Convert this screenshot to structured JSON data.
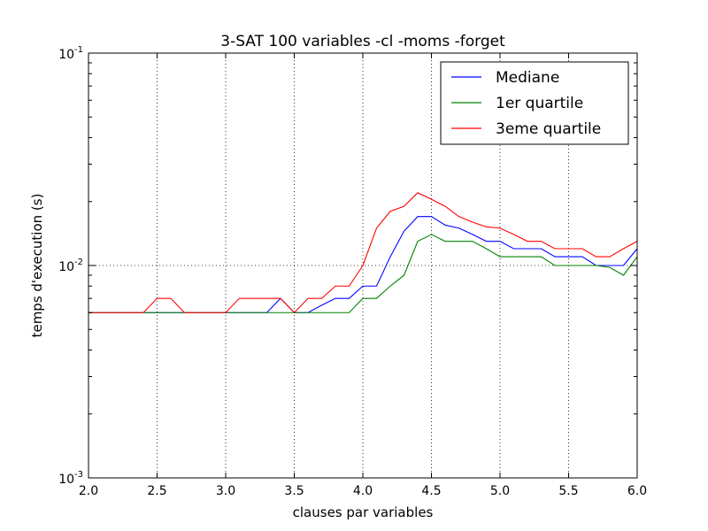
{
  "chart_data": {
    "type": "line",
    "title": "3-SAT 100 variables -cl -moms -forget",
    "xlabel": "clauses par variables",
    "ylabel": "temps d'execution (s)",
    "xlim": [
      2.0,
      6.0
    ],
    "ylim": [
      0.001,
      0.1
    ],
    "yscale": "log",
    "grid": true,
    "legend_position": "top-right",
    "xticks": [
      2.0,
      2.5,
      3.0,
      3.5,
      4.0,
      4.5,
      5.0,
      5.5,
      6.0
    ],
    "xtick_labels": [
      "2.0",
      "2.5",
      "3.0",
      "3.5",
      "4.0",
      "4.5",
      "5.0",
      "5.5",
      "6.0"
    ],
    "yticks": [
      0.001,
      0.01,
      0.1
    ],
    "ytick_labels": [
      {
        "base": "10",
        "exp": "-3"
      },
      {
        "base": "10",
        "exp": "-2"
      },
      {
        "base": "10",
        "exp": "-1"
      }
    ],
    "x": [
      2.0,
      2.1,
      2.2,
      2.3,
      2.4,
      2.5,
      2.6,
      2.7,
      2.8,
      2.9,
      3.0,
      3.1,
      3.2,
      3.3,
      3.4,
      3.5,
      3.6,
      3.7,
      3.8,
      3.9,
      4.0,
      4.1,
      4.2,
      4.3,
      4.4,
      4.5,
      4.6,
      4.7,
      4.8,
      4.9,
      5.0,
      5.1,
      5.2,
      5.3,
      5.4,
      5.5,
      5.6,
      5.7,
      5.8,
      5.9,
      6.0
    ],
    "series": [
      {
        "name": "Mediane",
        "color": "#0000ff",
        "values": [
          0.006,
          0.006,
          0.006,
          0.006,
          0.006,
          0.006,
          0.006,
          0.006,
          0.006,
          0.006,
          0.006,
          0.006,
          0.006,
          0.006,
          0.007,
          0.006,
          0.006,
          0.0065,
          0.007,
          0.007,
          0.008,
          0.008,
          0.011,
          0.0145,
          0.017,
          0.017,
          0.0155,
          0.015,
          0.014,
          0.013,
          0.013,
          0.012,
          0.012,
          0.012,
          0.011,
          0.011,
          0.011,
          0.01,
          0.01,
          0.01,
          0.012
        ]
      },
      {
        "name": "1er quartile",
        "color": "#008000",
        "values": [
          0.006,
          0.006,
          0.006,
          0.006,
          0.006,
          0.006,
          0.006,
          0.006,
          0.006,
          0.006,
          0.006,
          0.006,
          0.006,
          0.006,
          0.006,
          0.006,
          0.006,
          0.006,
          0.006,
          0.006,
          0.007,
          0.007,
          0.008,
          0.009,
          0.013,
          0.014,
          0.013,
          0.013,
          0.013,
          0.012,
          0.011,
          0.011,
          0.011,
          0.011,
          0.01,
          0.01,
          0.01,
          0.01,
          0.0098,
          0.009,
          0.011
        ]
      },
      {
        "name": "3eme quartile",
        "color": "#ff0000",
        "values": [
          0.006,
          0.006,
          0.006,
          0.006,
          0.006,
          0.007,
          0.007,
          0.006,
          0.006,
          0.006,
          0.006,
          0.007,
          0.007,
          0.007,
          0.007,
          0.006,
          0.007,
          0.007,
          0.008,
          0.008,
          0.01,
          0.015,
          0.018,
          0.019,
          0.022,
          0.0205,
          0.019,
          0.017,
          0.016,
          0.0152,
          0.015,
          0.014,
          0.013,
          0.013,
          0.012,
          0.012,
          0.012,
          0.011,
          0.011,
          0.012,
          0.013
        ]
      }
    ]
  }
}
